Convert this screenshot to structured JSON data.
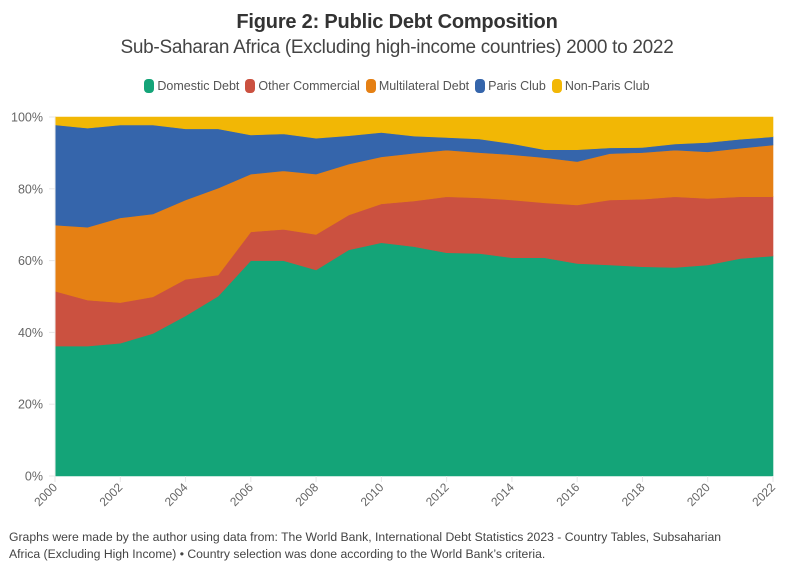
{
  "header": {
    "title": "Figure 2: Public Debt Composition",
    "subtitle": "Sub-Saharan Africa (Excluding high-income countries) 2000 to 2022"
  },
  "legend": [
    {
      "label": "Domestic Debt",
      "color": "#14a478"
    },
    {
      "label": "Other Commercial",
      "color": "#cb5140"
    },
    {
      "label": "Multilateral Debt",
      "color": "#e58014"
    },
    {
      "label": "Paris Club",
      "color": "#3565ab"
    },
    {
      "label": "Non-Paris Club",
      "color": "#f2b705"
    }
  ],
  "footer": {
    "line1": "Graphs were made by the author using data from: The World Bank, International Debt Statistics 2023 - Country Tables, Subsaharian",
    "line2": "Africa (Excluding High Income) • Country selection was done according to the World Bank’s criteria."
  },
  "chart_data": {
    "type": "area",
    "stacked": true,
    "normalized": true,
    "title": "Figure 2: Public Debt Composition",
    "subtitle": "Sub-Saharan Africa (Excluding high-income countries) 2000 to 2022",
    "xlabel": "",
    "ylabel": "",
    "x": [
      2000,
      2001,
      2002,
      2003,
      2004,
      2005,
      2006,
      2007,
      2008,
      2009,
      2010,
      2011,
      2012,
      2013,
      2014,
      2015,
      2016,
      2017,
      2018,
      2019,
      2020,
      2021,
      2022
    ],
    "x_ticks": [
      "2000",
      "2002",
      "2004",
      "2006",
      "2008",
      "2010",
      "2012",
      "2014",
      "2016",
      "2018",
      "2020",
      "2022"
    ],
    "y_ticks": [
      "0%",
      "20%",
      "40%",
      "60%",
      "80%",
      "100%"
    ],
    "xlim": [
      2000,
      2022
    ],
    "ylim": [
      0,
      100
    ],
    "grid": false,
    "legend_position": "top-center",
    "series": [
      {
        "name": "Domestic Debt",
        "color": "#14a478",
        "values": [
          36.2,
          36.2,
          37.0,
          39.7,
          44.6,
          50.1,
          60.0,
          60.0,
          57.4,
          63.0,
          65.0,
          63.9,
          62.2,
          62.0,
          60.8,
          60.8,
          59.2,
          58.8,
          58.3,
          58.1,
          58.8,
          60.6,
          61.3
        ]
      },
      {
        "name": "Other Commercial",
        "color": "#cb5140",
        "values": [
          15.3,
          12.8,
          11.3,
          10.2,
          10.2,
          5.9,
          8.0,
          8.7,
          9.9,
          9.7,
          10.8,
          12.7,
          15.6,
          15.5,
          16.1,
          15.3,
          16.3,
          18.1,
          18.8,
          19.7,
          18.5,
          17.2,
          16.5
        ]
      },
      {
        "name": "Multilateral Debt",
        "color": "#e58014",
        "values": [
          18.4,
          20.3,
          23.6,
          23.1,
          22.1,
          24.2,
          16.1,
          16.3,
          16.8,
          14.2,
          13.1,
          13.3,
          13.0,
          12.6,
          12.6,
          12.6,
          12.1,
          12.9,
          13.0,
          13.0,
          13.0,
          13.5,
          14.4
        ]
      },
      {
        "name": "Paris Club",
        "color": "#3565ab",
        "values": [
          27.9,
          27.6,
          25.9,
          24.8,
          19.8,
          16.5,
          10.9,
          10.3,
          10.0,
          7.9,
          6.8,
          4.8,
          3.5,
          3.8,
          3.1,
          2.2,
          3.3,
          1.6,
          1.4,
          1.7,
          2.6,
          2.5,
          2.3
        ]
      },
      {
        "name": "Non-Paris Club",
        "color": "#f2b705",
        "values": [
          2.2,
          3.1,
          2.2,
          2.2,
          3.3,
          3.3,
          5.0,
          4.7,
          5.9,
          5.2,
          4.3,
          5.3,
          5.7,
          6.1,
          7.4,
          9.1,
          9.1,
          8.6,
          8.5,
          7.5,
          7.1,
          6.2,
          5.5
        ]
      }
    ]
  }
}
